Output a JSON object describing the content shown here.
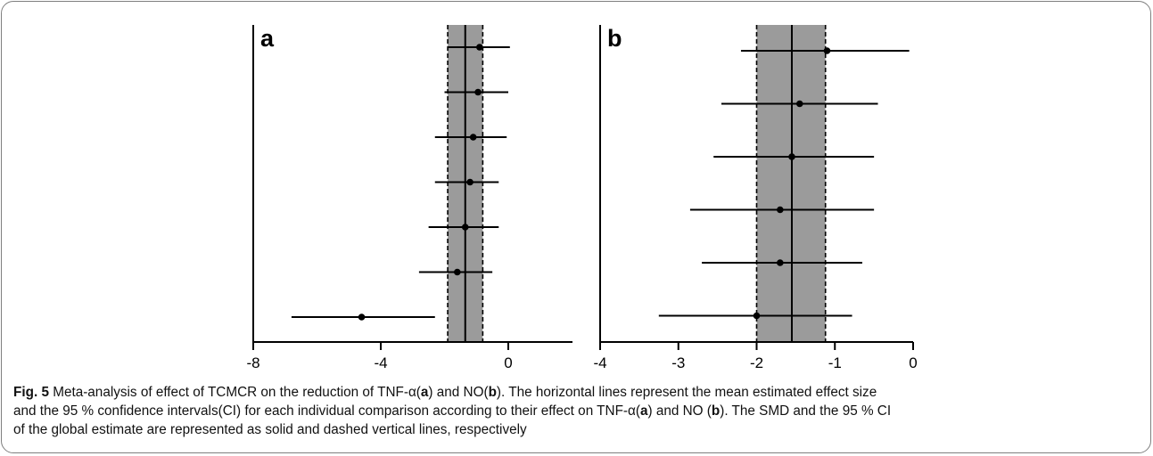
{
  "chart_data": [
    {
      "type": "forest",
      "panel_label": "a",
      "xlim": [
        -8,
        2
      ],
      "xticks": [
        -8,
        -4,
        0
      ],
      "x_tick_labels": [
        "-8",
        "-4",
        "0"
      ],
      "studies": [
        {
          "mean": -0.9,
          "ci_low": -1.9,
          "ci_high": 0.05
        },
        {
          "mean": -0.95,
          "ci_low": -2.0,
          "ci_high": 0.0
        },
        {
          "mean": -1.1,
          "ci_low": -2.3,
          "ci_high": -0.05
        },
        {
          "mean": -1.2,
          "ci_low": -2.3,
          "ci_high": -0.3
        },
        {
          "mean": -1.35,
          "ci_low": -2.5,
          "ci_high": -0.3
        },
        {
          "mean": -1.6,
          "ci_low": -2.8,
          "ci_high": -0.5
        },
        {
          "mean": -4.6,
          "ci_low": -6.8,
          "ci_high": -2.3
        }
      ],
      "global_estimate": {
        "mean": -1.35,
        "ci_low": -1.9,
        "ci_high": -0.8
      },
      "grid": false
    },
    {
      "type": "forest",
      "panel_label": "b",
      "xlim": [
        -4,
        0
      ],
      "xticks": [
        -4,
        -3,
        -2,
        -1,
        0
      ],
      "x_tick_labels": [
        "-4",
        "-3",
        "-2",
        "-1",
        "0"
      ],
      "studies": [
        {
          "mean": -1.1,
          "ci_low": -2.2,
          "ci_high": -0.05
        },
        {
          "mean": -1.45,
          "ci_low": -2.45,
          "ci_high": -0.45
        },
        {
          "mean": -1.55,
          "ci_low": -2.55,
          "ci_high": -0.5
        },
        {
          "mean": -1.7,
          "ci_low": -2.85,
          "ci_high": -0.5
        },
        {
          "mean": -1.7,
          "ci_low": -2.7,
          "ci_high": -0.65
        },
        {
          "mean": -2.0,
          "ci_low": -3.25,
          "ci_high": -0.78
        }
      ],
      "global_estimate": {
        "mean": -1.55,
        "ci_low": -2.0,
        "ci_high": -1.12
      },
      "grid": false
    }
  ],
  "caption": {
    "fig_label": "Fig. 5",
    "line1_parts": [
      {
        "t": " Meta-analysis of effect of TCMCR on the reduction of TNF-α(",
        "b": false
      },
      {
        "t": "a",
        "b": true
      },
      {
        "t": ") and NO(",
        "b": false
      },
      {
        "t": "b",
        "b": true
      },
      {
        "t": "). The horizontal lines represent the mean estimated effect size",
        "b": false
      }
    ],
    "line2_parts": [
      {
        "t": "and the 95 % confidence intervals(CI) for each individual comparison according to their effect on TNF-α(",
        "b": false
      },
      {
        "t": "a",
        "b": true
      },
      {
        "t": ") and NO (",
        "b": false
      },
      {
        "t": "b",
        "b": true
      },
      {
        "t": "). The SMD and the 95 % CI",
        "b": false
      }
    ],
    "line3_parts": [
      {
        "t": "of the global estimate are represented as solid and dashed vertical lines, respectively",
        "b": false
      }
    ]
  },
  "colors": {
    "shade": "#9b9b9b",
    "line": "#000000",
    "frame": "#7f7f7f"
  }
}
